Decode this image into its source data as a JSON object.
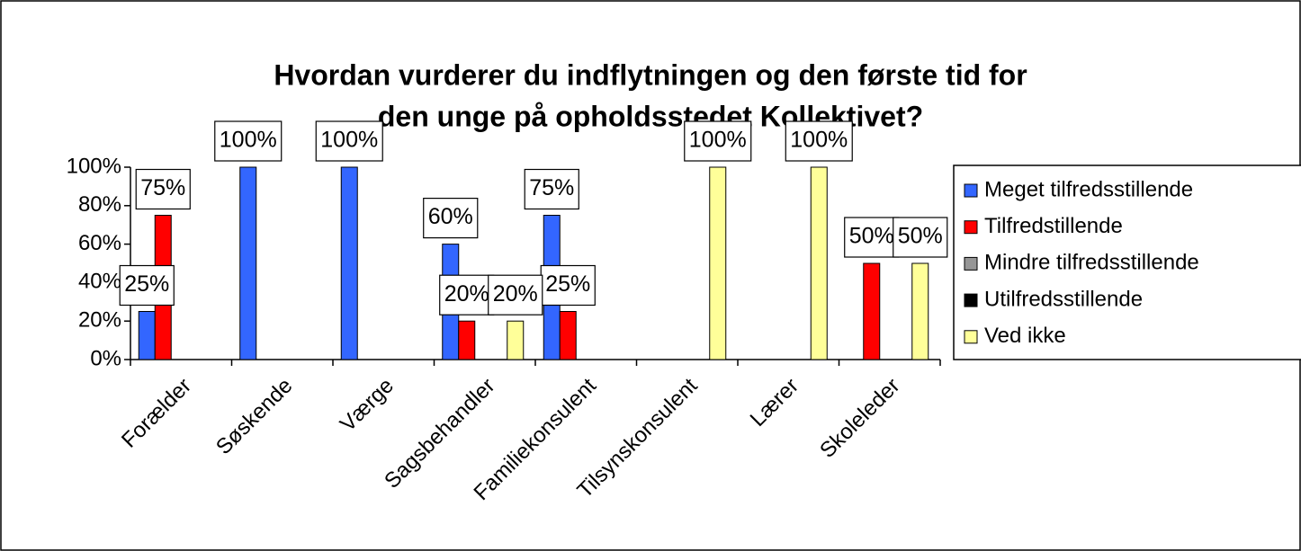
{
  "chart_data": {
    "type": "bar",
    "title": [
      "Hvordan vurderer du indflytningen og den første tid for",
      "den unge på opholdsstedet Kollektivet?"
    ],
    "categories": [
      "Forælder",
      "Søskende",
      "Værge",
      "Sagsbehandler",
      "Familiekonsulent",
      "Tilsynskonsulent",
      "Lærer",
      "Skoleleder"
    ],
    "series": [
      {
        "name": "Meget tilfredsstillende",
        "color": "#3366ff",
        "values": [
          25,
          100,
          100,
          60,
          75,
          null,
          null,
          null
        ],
        "value_labels": [
          "25%",
          "100%",
          "100%",
          "60%",
          "75%",
          null,
          null,
          null
        ]
      },
      {
        "name": "Tilfredstillende",
        "color": "#ff0000",
        "values": [
          75,
          null,
          null,
          20,
          25,
          null,
          null,
          50
        ],
        "value_labels": [
          "75%",
          null,
          null,
          "20%",
          "25%",
          null,
          null,
          "50%"
        ]
      },
      {
        "name": "Mindre tilfredsstillende",
        "color": "#969696",
        "values": [
          null,
          null,
          null,
          null,
          null,
          null,
          null,
          null
        ]
      },
      {
        "name": "Utilfredsstillende",
        "color": "#000000",
        "values": [
          null,
          null,
          null,
          null,
          null,
          null,
          null,
          null
        ]
      },
      {
        "name": "Ved ikke",
        "color": "#ffff99",
        "values": [
          null,
          null,
          null,
          20,
          null,
          100,
          100,
          50
        ],
        "value_labels": [
          null,
          null,
          null,
          "20%",
          null,
          "100%",
          "100%",
          "50%"
        ]
      }
    ],
    "ylim": [
      0,
      100
    ],
    "yticks": [
      {
        "value": 0,
        "label": "0%"
      },
      {
        "value": 20,
        "label": "20%"
      },
      {
        "value": 40,
        "label": "40%"
      },
      {
        "value": 60,
        "label": "60%"
      },
      {
        "value": 80,
        "label": "80%"
      },
      {
        "value": 100,
        "label": "100%"
      }
    ],
    "grid": false,
    "legend": "right"
  }
}
